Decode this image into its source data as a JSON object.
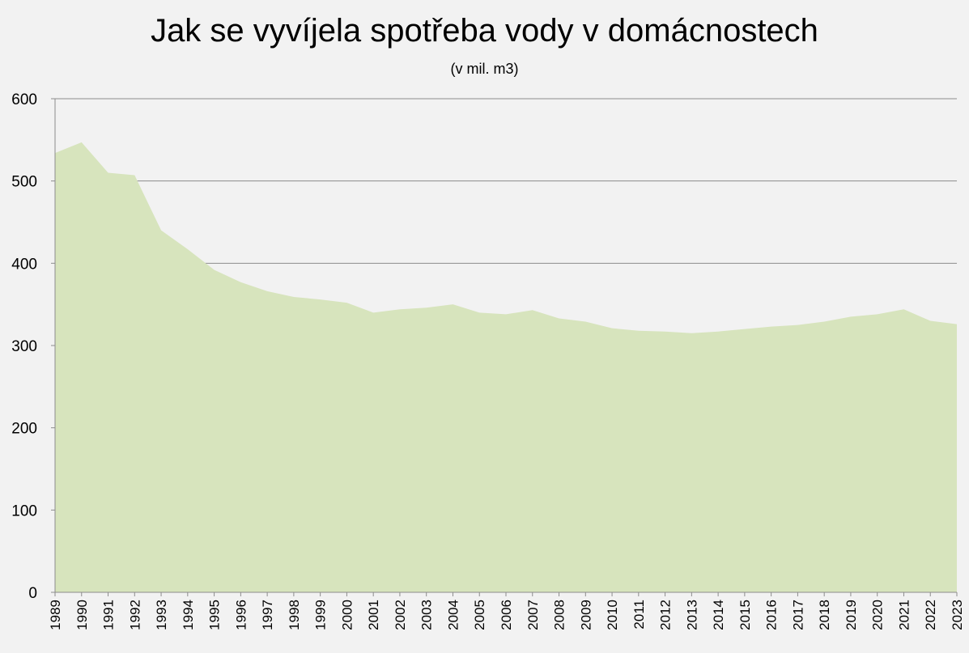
{
  "chart_data": {
    "type": "area",
    "title": "Jak se vyvíjela spotřeba vody v domácnostech",
    "subtitle": "(v mil. m3)",
    "xlabel": "",
    "ylabel": "",
    "ylim": [
      0,
      600
    ],
    "yticks": [
      0,
      100,
      200,
      300,
      400,
      500,
      600
    ],
    "grid": true,
    "legend": "none",
    "fill_color": "#d7e4bd",
    "grid_color": "#8c8c8c",
    "axis_color": "#8c8c8c",
    "background": "#f2f2f2",
    "categories": [
      "1989",
      "1990",
      "1991",
      "1992",
      "1993",
      "1994",
      "1995",
      "1996",
      "1997",
      "1998",
      "1999",
      "2000",
      "2001",
      "2002",
      "2003",
      "2004",
      "2005",
      "2006",
      "2007",
      "2008",
      "2009",
      "2010",
      "2011",
      "2012",
      "2013",
      "2014",
      "2015",
      "2016",
      "2017",
      "2018",
      "2019",
      "2020",
      "2021",
      "2022",
      "2023"
    ],
    "values": [
      534,
      547,
      510,
      507,
      440,
      417,
      392,
      377,
      366,
      359,
      356,
      352,
      340,
      344,
      346,
      350,
      340,
      338,
      343,
      333,
      329,
      321,
      318,
      317,
      315,
      317,
      320,
      323,
      325,
      329,
      335,
      338,
      344,
      330,
      326
    ]
  }
}
